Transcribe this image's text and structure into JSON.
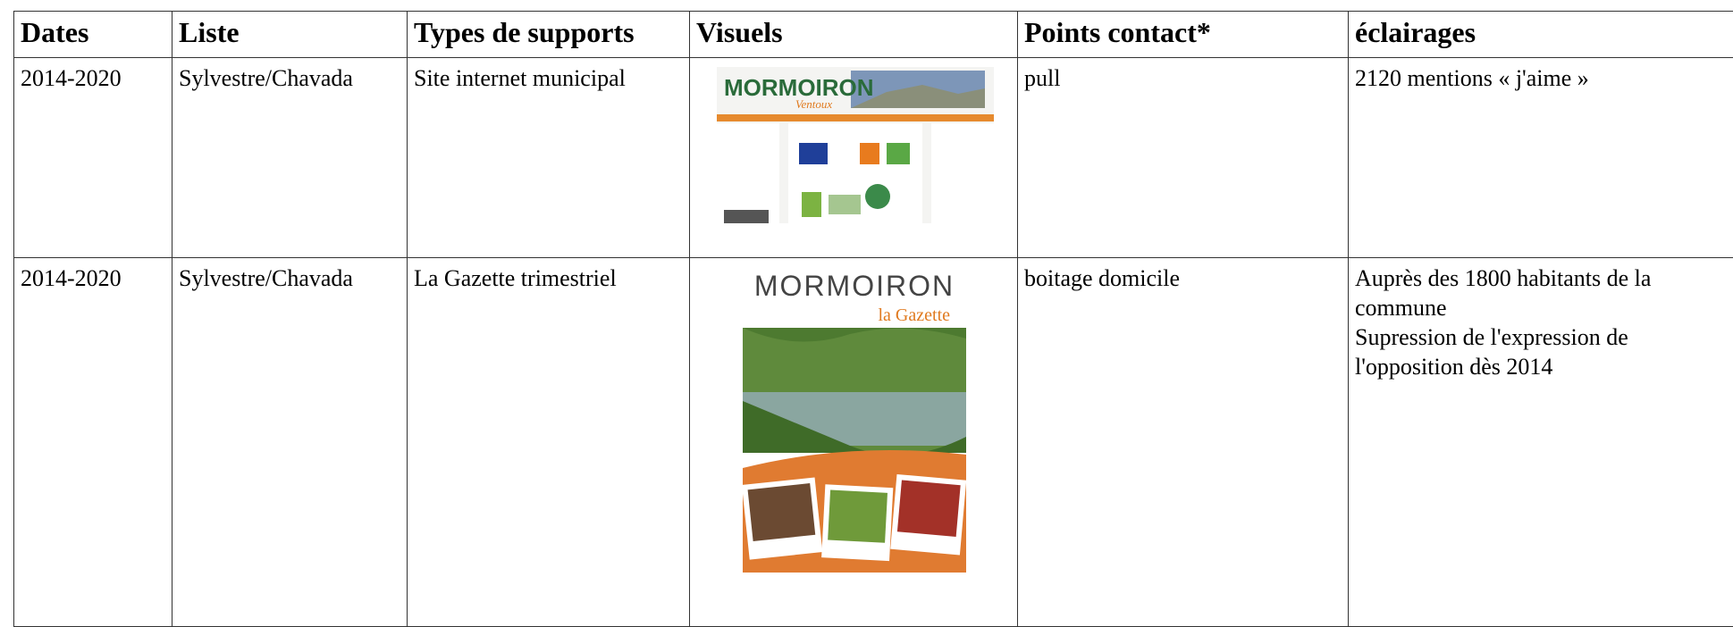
{
  "table": {
    "headers": [
      "Dates",
      "Liste",
      "Types de supports",
      "Visuels",
      "Points contact*",
      "éclairages"
    ],
    "rows": [
      {
        "dates": "2014-2020",
        "liste": "Sylvestre/Chavada",
        "support": "Site internet municipal",
        "visual": {
          "title": "MORMOIRON",
          "subtitle": "Ventoux"
        },
        "contact": "pull",
        "eclairages": [
          "2120 mentions « j'aime »"
        ]
      },
      {
        "dates": "2014-2020",
        "liste": "Sylvestre/Chavada",
        "support": "La Gazette trimestriel",
        "visual": {
          "title": "MORMOIRON",
          "subtitle": "la Gazette"
        },
        "contact": "boitage domicile",
        "eclairages": [
          "Auprès des 1800 habitants de la commune",
          "Supression de l'expression de l'opposition dès 2014"
        ]
      }
    ]
  }
}
